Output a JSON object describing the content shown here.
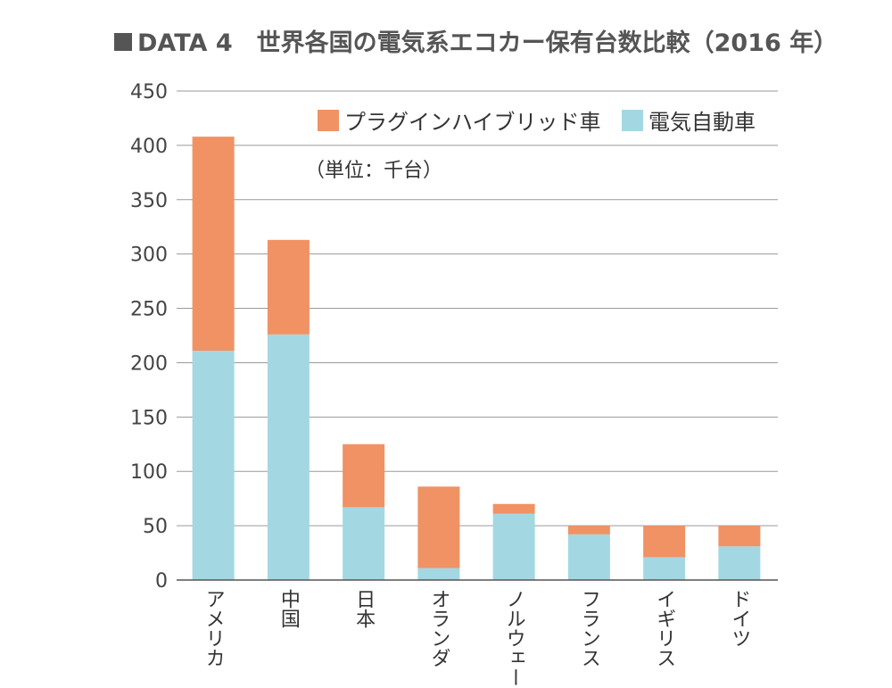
{
  "chart_data": {
    "type": "bar",
    "stacked": true,
    "title": "DATA 4　世界各国の電気系エコカー保有台数比較（2016 年）",
    "unit_note": "（単位：千台）",
    "categories": [
      "アメリカ",
      "中国",
      "日本",
      "オランダ",
      "ノルウェー",
      "フランス",
      "イギリス",
      "ドイツ"
    ],
    "series": [
      {
        "name": "電気自動車",
        "color": "#a3d8e3",
        "values": [
          211,
          226,
          67,
          11,
          61,
          42,
          21,
          31
        ]
      },
      {
        "name": "プラグインハイブリッド車",
        "color": "#f09264",
        "values": [
          197,
          87,
          58,
          75,
          9,
          8,
          29,
          19
        ]
      }
    ],
    "legend_order": [
      "プラグインハイブリッド車",
      "電気自動車"
    ],
    "ylim": [
      0,
      450
    ],
    "yticks": [
      0,
      50,
      100,
      150,
      200,
      250,
      300,
      350,
      400,
      450
    ],
    "grid": true,
    "legend_position": "top-right",
    "title_marker_color": "#555555"
  }
}
